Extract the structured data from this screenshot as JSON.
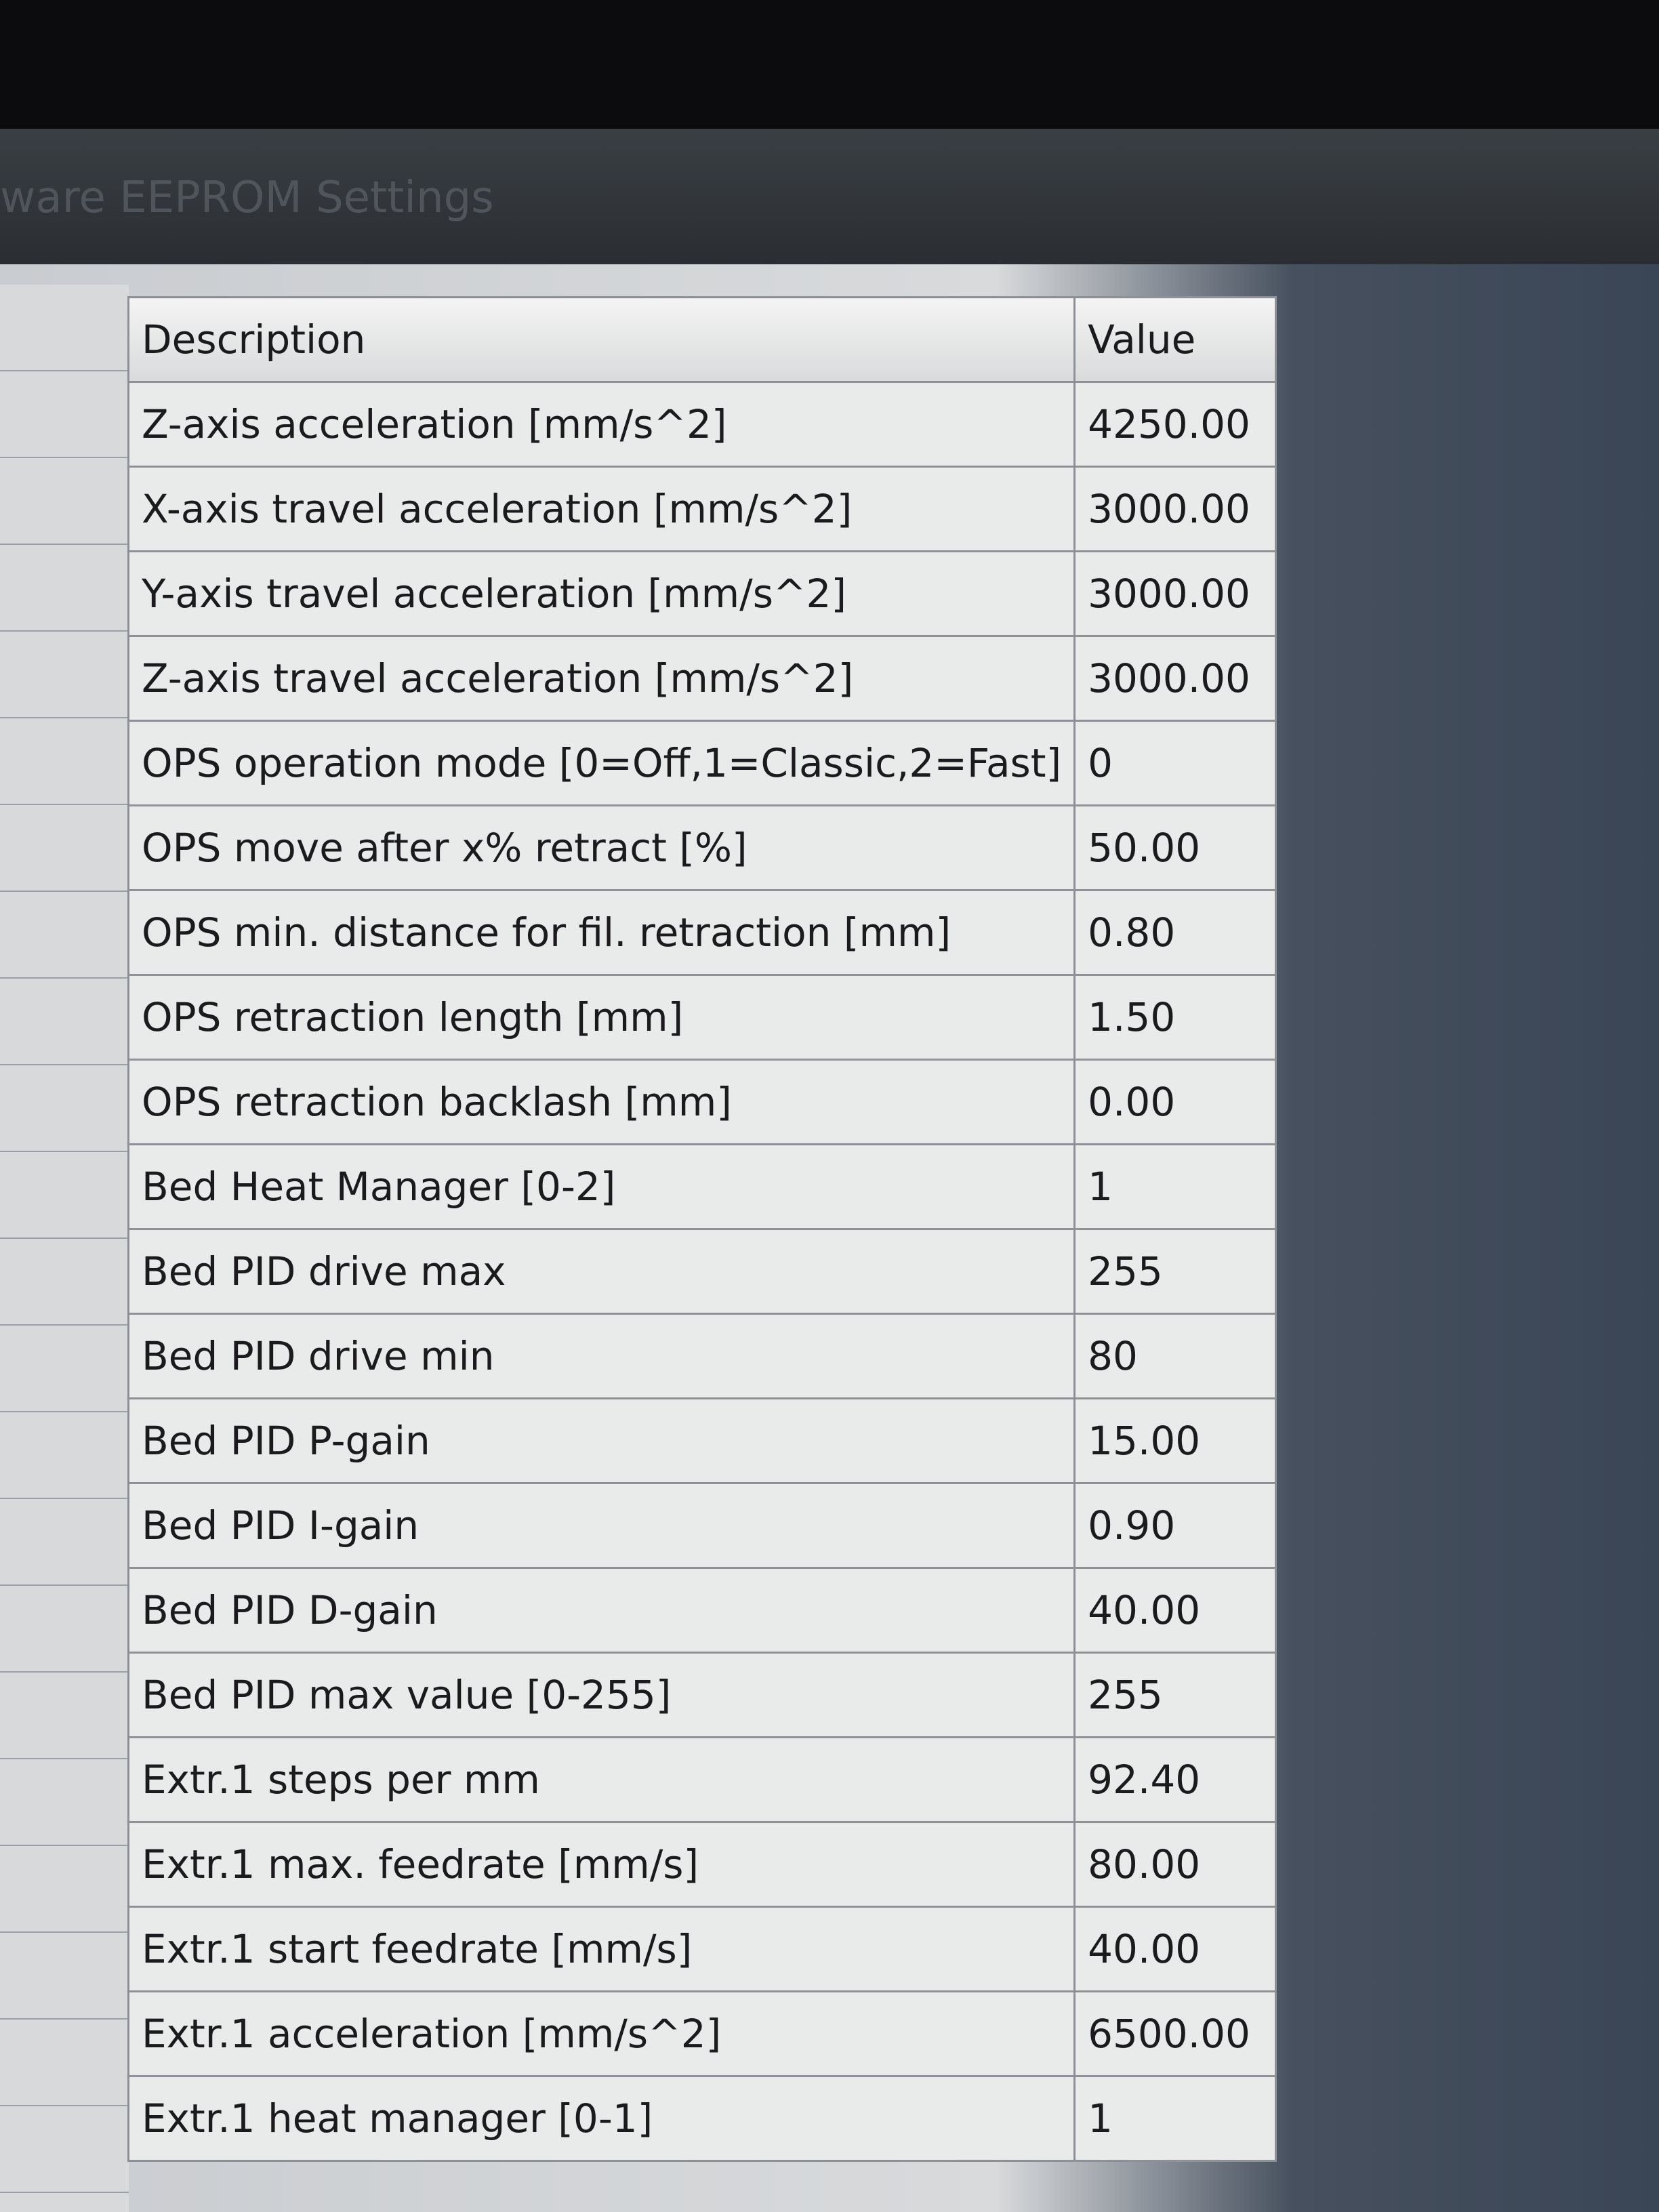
{
  "window": {
    "title": "ware EEPROM Settings"
  },
  "table": {
    "columns": [
      "Description",
      "Value"
    ],
    "rows": [
      [
        "Z-axis acceleration [mm/s^2]",
        "4250.00"
      ],
      [
        "X-axis travel acceleration [mm/s^2]",
        "3000.00"
      ],
      [
        "Y-axis travel acceleration [mm/s^2]",
        "3000.00"
      ],
      [
        "Z-axis travel acceleration [mm/s^2]",
        "3000.00"
      ],
      [
        "OPS operation mode [0=Off,1=Classic,2=Fast]",
        "0"
      ],
      [
        "OPS move after x% retract [%]",
        "50.00"
      ],
      [
        "OPS min. distance for fil. retraction [mm]",
        "0.80"
      ],
      [
        "OPS retraction length [mm]",
        "1.50"
      ],
      [
        "OPS retraction backlash [mm]",
        "0.00"
      ],
      [
        "Bed Heat Manager [0-2]",
        "1"
      ],
      [
        "Bed PID drive max",
        "255"
      ],
      [
        "Bed PID drive min",
        "80"
      ],
      [
        "Bed PID P-gain",
        "15.00"
      ],
      [
        "Bed PID I-gain",
        "0.90"
      ],
      [
        "Bed PID D-gain",
        "40.00"
      ],
      [
        "Bed PID max value [0-255]",
        "255"
      ],
      [
        "Extr.1 steps per mm",
        "92.40"
      ],
      [
        "Extr.1 max. feedrate [mm/s]",
        "80.00"
      ],
      [
        "Extr.1 start feedrate [mm/s]",
        "40.00"
      ],
      [
        "Extr.1 acceleration [mm/s^2]",
        "6500.00"
      ],
      [
        "Extr.1 heat manager [0-1]",
        "1"
      ]
    ]
  }
}
